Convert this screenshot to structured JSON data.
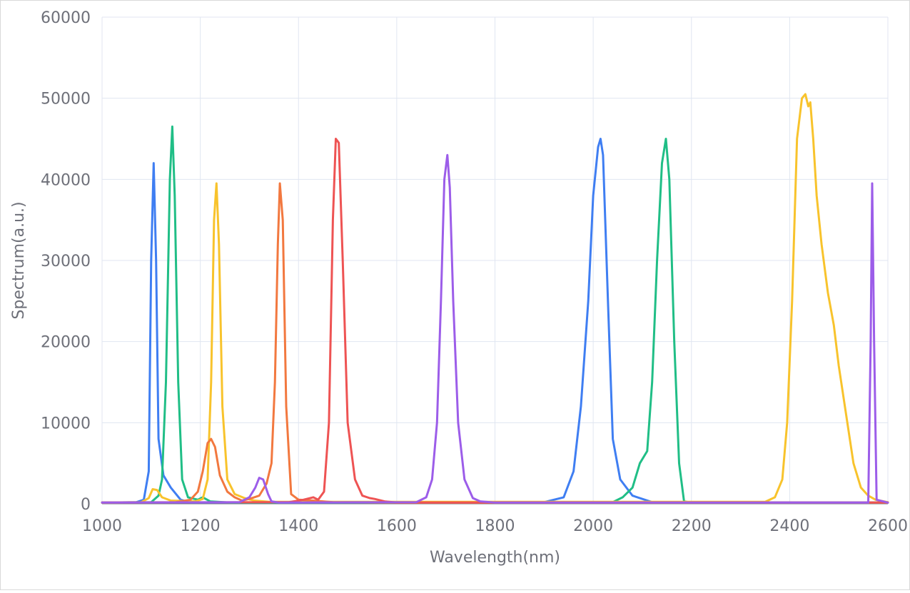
{
  "chart_data": {
    "type": "line",
    "title": "",
    "xlabel": "Wavelength(nm)",
    "ylabel": "Spectrum(a.u.)",
    "xlim": [
      1000,
      2600
    ],
    "ylim": [
      0,
      60000
    ],
    "x_ticks": [
      "1000",
      "1200",
      "1400",
      "1600",
      "1800",
      "2000",
      "2200",
      "2400",
      "2600"
    ],
    "y_ticks": [
      "0",
      "10000",
      "20000",
      "30000",
      "40000",
      "50000",
      "60000"
    ],
    "grid": true,
    "legend": "none",
    "series": [
      {
        "color": "#3f7ef2",
        "points": [
          [
            1000,
            150
          ],
          [
            1070,
            200
          ],
          [
            1085,
            500
          ],
          [
            1095,
            4000
          ],
          [
            1100,
            30000
          ],
          [
            1105,
            42000
          ],
          [
            1110,
            30000
          ],
          [
            1115,
            8000
          ],
          [
            1125,
            3500
          ],
          [
            1140,
            2000
          ],
          [
            1160,
            500
          ],
          [
            1180,
            150
          ],
          [
            1300,
            150
          ],
          [
            1900,
            200
          ],
          [
            1940,
            800
          ],
          [
            1960,
            4000
          ],
          [
            1975,
            12000
          ],
          [
            1990,
            25000
          ],
          [
            2000,
            38000
          ],
          [
            2010,
            44000
          ],
          [
            2015,
            45000
          ],
          [
            2020,
            43000
          ],
          [
            2030,
            25000
          ],
          [
            2040,
            8000
          ],
          [
            2055,
            3000
          ],
          [
            2080,
            1000
          ],
          [
            2120,
            200
          ],
          [
            2600,
            150
          ]
        ]
      },
      {
        "color": "#20be86",
        "points": [
          [
            1000,
            150
          ],
          [
            1100,
            200
          ],
          [
            1115,
            1000
          ],
          [
            1122,
            3000
          ],
          [
            1130,
            15000
          ],
          [
            1138,
            40000
          ],
          [
            1143,
            46500
          ],
          [
            1148,
            38000
          ],
          [
            1155,
            15000
          ],
          [
            1163,
            3000
          ],
          [
            1175,
            800
          ],
          [
            1195,
            500
          ],
          [
            1205,
            800
          ],
          [
            1220,
            300
          ],
          [
            1260,
            150
          ],
          [
            2040,
            200
          ],
          [
            2060,
            800
          ],
          [
            2080,
            2000
          ],
          [
            2095,
            5000
          ],
          [
            2110,
            6500
          ],
          [
            2120,
            15000
          ],
          [
            2130,
            30000
          ],
          [
            2140,
            42000
          ],
          [
            2148,
            45000
          ],
          [
            2155,
            40000
          ],
          [
            2165,
            20000
          ],
          [
            2175,
            5000
          ],
          [
            2185,
            300
          ],
          [
            2200,
            150
          ],
          [
            2600,
            150
          ]
        ]
      },
      {
        "color": "#f8c32c",
        "points": [
          [
            1000,
            150
          ],
          [
            1080,
            200
          ],
          [
            1095,
            700
          ],
          [
            1103,
            1800
          ],
          [
            1112,
            1700
          ],
          [
            1122,
            800
          ],
          [
            1140,
            400
          ],
          [
            1190,
            300
          ],
          [
            1205,
            600
          ],
          [
            1215,
            3000
          ],
          [
            1222,
            15000
          ],
          [
            1228,
            35000
          ],
          [
            1233,
            39500
          ],
          [
            1238,
            32000
          ],
          [
            1245,
            12000
          ],
          [
            1255,
            3000
          ],
          [
            1270,
            1200
          ],
          [
            1290,
            700
          ],
          [
            1310,
            400
          ],
          [
            1340,
            250
          ],
          [
            2350,
            250
          ],
          [
            2370,
            800
          ],
          [
            2385,
            3000
          ],
          [
            2395,
            10000
          ],
          [
            2405,
            25000
          ],
          [
            2415,
            45000
          ],
          [
            2425,
            50000
          ],
          [
            2432,
            50500
          ],
          [
            2438,
            49000
          ],
          [
            2442,
            49500
          ],
          [
            2448,
            45000
          ],
          [
            2455,
            38000
          ],
          [
            2465,
            32000
          ],
          [
            2478,
            26000
          ],
          [
            2490,
            22000
          ],
          [
            2500,
            17000
          ],
          [
            2515,
            11000
          ],
          [
            2530,
            5000
          ],
          [
            2545,
            2000
          ],
          [
            2560,
            1000
          ],
          [
            2575,
            500
          ],
          [
            2600,
            200
          ]
        ]
      },
      {
        "color": "#f2783f",
        "points": [
          [
            1000,
            150
          ],
          [
            1150,
            200
          ],
          [
            1180,
            500
          ],
          [
            1195,
            1500
          ],
          [
            1205,
            4000
          ],
          [
            1215,
            7500
          ],
          [
            1222,
            8000
          ],
          [
            1230,
            7000
          ],
          [
            1240,
            3500
          ],
          [
            1255,
            1500
          ],
          [
            1270,
            800
          ],
          [
            1285,
            400
          ],
          [
            1300,
            600
          ],
          [
            1320,
            1000
          ],
          [
            1335,
            2500
          ],
          [
            1345,
            5000
          ],
          [
            1352,
            15000
          ],
          [
            1358,
            32000
          ],
          [
            1362,
            39500
          ],
          [
            1368,
            35000
          ],
          [
            1375,
            12000
          ],
          [
            1385,
            1200
          ],
          [
            1400,
            500
          ],
          [
            1430,
            400
          ],
          [
            1470,
            200
          ],
          [
            1600,
            150
          ],
          [
            2600,
            150
          ]
        ]
      },
      {
        "color": "#ee5353",
        "points": [
          [
            1000,
            150
          ],
          [
            1380,
            200
          ],
          [
            1410,
            500
          ],
          [
            1430,
            800
          ],
          [
            1440,
            500
          ],
          [
            1452,
            1500
          ],
          [
            1462,
            10000
          ],
          [
            1470,
            35000
          ],
          [
            1476,
            45000
          ],
          [
            1482,
            44500
          ],
          [
            1490,
            30000
          ],
          [
            1500,
            10000
          ],
          [
            1515,
            3000
          ],
          [
            1530,
            1000
          ],
          [
            1545,
            700
          ],
          [
            1555,
            600
          ],
          [
            1575,
            300
          ],
          [
            1600,
            150
          ],
          [
            2600,
            150
          ]
        ]
      },
      {
        "color": "#9c5de9",
        "points": [
          [
            1000,
            150
          ],
          [
            1280,
            200
          ],
          [
            1300,
            800
          ],
          [
            1312,
            2000
          ],
          [
            1320,
            3200
          ],
          [
            1328,
            3000
          ],
          [
            1338,
            1200
          ],
          [
            1345,
            300
          ],
          [
            1360,
            150
          ],
          [
            1640,
            200
          ],
          [
            1660,
            800
          ],
          [
            1672,
            3000
          ],
          [
            1682,
            10000
          ],
          [
            1690,
            25000
          ],
          [
            1697,
            40000
          ],
          [
            1703,
            43000
          ],
          [
            1708,
            39000
          ],
          [
            1715,
            25000
          ],
          [
            1725,
            10000
          ],
          [
            1738,
            3000
          ],
          [
            1755,
            700
          ],
          [
            1770,
            300
          ],
          [
            1800,
            150
          ],
          [
            2560,
            150
          ],
          [
            2565,
            20000
          ],
          [
            2568,
            39500
          ],
          [
            2572,
            20000
          ],
          [
            2577,
            500
          ],
          [
            2600,
            150
          ]
        ]
      }
    ]
  }
}
